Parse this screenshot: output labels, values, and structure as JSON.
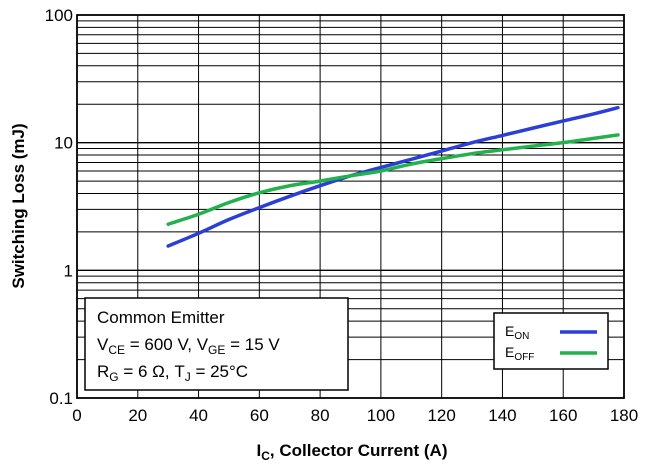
{
  "chart_data": {
    "type": "line",
    "title": "",
    "xlabel": "I",
    "xlabel_sub": "C",
    "xlabel_rest": ", Collector Current (A)",
    "ylabel": "Switching Loss (mJ)",
    "xlim": [
      0,
      180
    ],
    "ylim": [
      0.1,
      100
    ],
    "y_scale": "log",
    "grid": true,
    "x_ticks": [
      0,
      20,
      40,
      60,
      80,
      100,
      120,
      140,
      160,
      180
    ],
    "y_ticks": [
      0.1,
      1,
      10,
      100
    ],
    "x_tick_labels": [
      "0",
      "20",
      "40",
      "60",
      "80",
      "100",
      "120",
      "140",
      "160",
      "180"
    ],
    "y_tick_labels": [
      "0.1",
      "1",
      "10",
      "100"
    ],
    "legend_position": "bottom-right",
    "series": [
      {
        "name": "E",
        "name_sub": "ON",
        "color": "#2b3fd6",
        "x": [
          30,
          40,
          50,
          60,
          70,
          80,
          90,
          100,
          110,
          120,
          130,
          140,
          150,
          160,
          170,
          178
        ],
        "y": [
          1.55,
          1.95,
          2.5,
          3.1,
          3.8,
          4.6,
          5.5,
          6.4,
          7.4,
          8.6,
          10.0,
          11.4,
          13.0,
          14.8,
          16.8,
          18.8
        ]
      },
      {
        "name": "E",
        "name_sub": "OFF",
        "color": "#22b14c",
        "x": [
          30,
          40,
          50,
          60,
          70,
          80,
          90,
          100,
          110,
          120,
          130,
          140,
          150,
          160,
          170,
          178
        ],
        "y": [
          2.3,
          2.75,
          3.4,
          4.05,
          4.6,
          5.0,
          5.5,
          6.0,
          6.8,
          7.5,
          8.2,
          8.8,
          9.4,
          10.0,
          10.8,
          11.5
        ]
      }
    ],
    "annotation": {
      "line1": "Common Emitter",
      "line2": {
        "a": "V",
        "a_sub": "CE",
        "b": " = 600 V, V",
        "b_sub": "GE",
        "c": " = 15 V"
      },
      "line3": {
        "a": "R",
        "a_sub": "G",
        "b": " = 6 Ω, T",
        "b_sub": "J",
        "c": " = 25°C"
      }
    }
  }
}
